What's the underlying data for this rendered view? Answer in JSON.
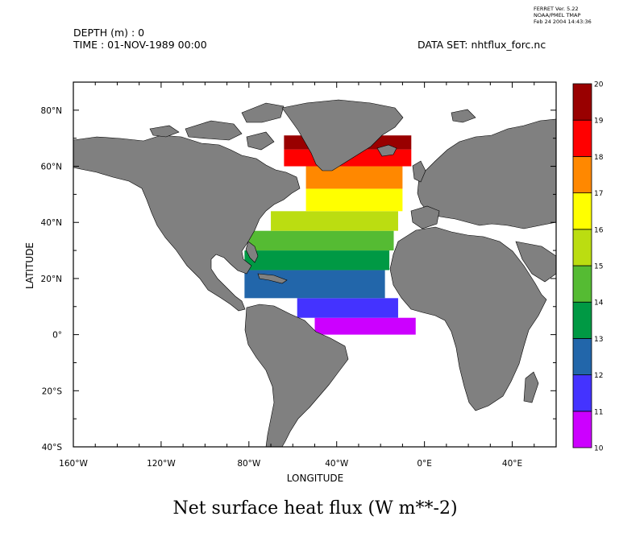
{
  "header": {
    "depth": "DEPTH (m) : 0",
    "time": "TIME : 01-NOV-1989 00:00",
    "dataset": "DATA SET: nhtflux_forc.nc"
  },
  "stamp": {
    "line1": "FERRET Ver. 5.22",
    "line2": "NOAA/PMEL TMAP",
    "line3": "Feb 24 2004 14:43:36"
  },
  "title": "Net surface heat flux (W m**-2)",
  "colors": {
    "land": "#808080",
    "ocean": "#ffffff"
  },
  "chart_data": {
    "type": "heatmap",
    "title": "Net surface heat flux (W m**-2)",
    "xlabel": "LONGITUDE",
    "ylabel": "LATITUDE",
    "xlim": [
      -160,
      -50,
      60
    ],
    "x_range": [
      -160,
      60
    ],
    "y_range": [
      -40,
      90
    ],
    "x_ticks": [
      {
        "value": -160,
        "label": "160°W"
      },
      {
        "value": -120,
        "label": "120°W"
      },
      {
        "value": -80,
        "label": "80°W"
      },
      {
        "value": -40,
        "label": "40°W"
      },
      {
        "value": 0,
        "label": "0°E"
      },
      {
        "value": 40,
        "label": "40°E"
      }
    ],
    "y_ticks": [
      {
        "value": -40,
        "label": "40°S"
      },
      {
        "value": -20,
        "label": "20°S"
      },
      {
        "value": 0,
        "label": "0°"
      },
      {
        "value": 20,
        "label": "20°N"
      },
      {
        "value": 40,
        "label": "40°N"
      },
      {
        "value": 60,
        "label": "60°N"
      },
      {
        "value": 80,
        "label": "80°N"
      }
    ],
    "colorbar": {
      "levels": [
        10,
        11,
        12,
        13,
        14,
        15,
        16,
        17,
        18,
        19,
        20
      ],
      "colors": [
        "#cc00ff",
        "#4433ff",
        "#2266aa",
        "#009944",
        "#55bb33",
        "#bbdd11",
        "#ffff00",
        "#ff8800",
        "#ff0000",
        "#990000"
      ]
    },
    "bands": [
      {
        "lat": [
          0,
          6
        ],
        "lon": [
          -50,
          -4
        ],
        "value": 10.5
      },
      {
        "lat": [
          6,
          13
        ],
        "lon": [
          -58,
          -12
        ],
        "value": 11.5
      },
      {
        "lat": [
          13,
          23
        ],
        "lon": [
          -82,
          -18
        ],
        "value": 12.5
      },
      {
        "lat": [
          23,
          30
        ],
        "lon": [
          -82,
          -16
        ],
        "value": 13.5
      },
      {
        "lat": [
          30,
          37
        ],
        "lon": [
          -80,
          -14
        ],
        "value": 14.5
      },
      {
        "lat": [
          37,
          44
        ],
        "lon": [
          -70,
          -12
        ],
        "value": 15.5
      },
      {
        "lat": [
          44,
          52
        ],
        "lon": [
          -54,
          -10
        ],
        "value": 16.5
      },
      {
        "lat": [
          52,
          60
        ],
        "lon": [
          -54,
          -10
        ],
        "value": 17.5
      },
      {
        "lat": [
          60,
          66
        ],
        "lon": [
          -64,
          -6
        ],
        "value": 18.5
      },
      {
        "lat": [
          66,
          71
        ],
        "lon": [
          -64,
          -6
        ],
        "value": 19.5
      }
    ]
  }
}
